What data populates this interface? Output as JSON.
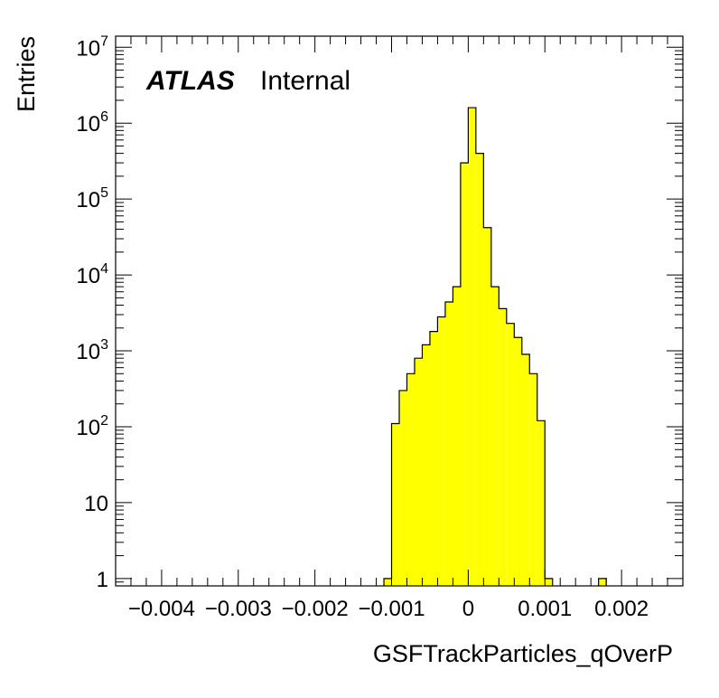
{
  "chart_data": {
    "type": "histogram",
    "title": "",
    "xlabel": "GSFTrackParticles_qOverP",
    "ylabel": "Entries",
    "label_atlas": "ATLAS",
    "label_status": "Internal",
    "xlim": [
      -0.0046,
      0.0028
    ],
    "ylim": [
      0.8,
      14000000
    ],
    "y_scale": "log",
    "grid": false,
    "fill_color": "#ffff00",
    "line_color": "#000000",
    "x_ticks": [
      {
        "value": -0.004,
        "label": "−0.004"
      },
      {
        "value": -0.003,
        "label": "−0.003"
      },
      {
        "value": -0.002,
        "label": "−0.002"
      },
      {
        "value": -0.001,
        "label": "−0.001"
      },
      {
        "value": 0,
        "label": "0"
      },
      {
        "value": 0.001,
        "label": "0.001"
      },
      {
        "value": 0.002,
        "label": "0.002"
      }
    ],
    "y_ticks": [
      {
        "value": 1,
        "base": "1",
        "exp": ""
      },
      {
        "value": 10,
        "base": "10",
        "exp": ""
      },
      {
        "value": 100,
        "base": "10",
        "exp": "2"
      },
      {
        "value": 1000,
        "base": "10",
        "exp": "3"
      },
      {
        "value": 10000,
        "base": "10",
        "exp": "4"
      },
      {
        "value": 100000,
        "base": "10",
        "exp": "5"
      },
      {
        "value": 1000000,
        "base": "10",
        "exp": "6"
      },
      {
        "value": 10000000,
        "base": "10",
        "exp": "7"
      }
    ],
    "bin_width": 0.0001,
    "bins": [
      {
        "x_low": -0.0011,
        "value": 1
      },
      {
        "x_low": -0.001,
        "value": 110
      },
      {
        "x_low": -0.0009,
        "value": 300
      },
      {
        "x_low": -0.0008,
        "value": 500
      },
      {
        "x_low": -0.0007,
        "value": 800
      },
      {
        "x_low": -0.0006,
        "value": 1200
      },
      {
        "x_low": -0.0005,
        "value": 1800
      },
      {
        "x_low": -0.0004,
        "value": 2800
      },
      {
        "x_low": -0.0003,
        "value": 4400
      },
      {
        "x_low": -0.0002,
        "value": 7000
      },
      {
        "x_low": -0.0001,
        "value": 300000
      },
      {
        "x_low": 0.0,
        "value": 1600000
      },
      {
        "x_low": 0.0001,
        "value": 400000
      },
      {
        "x_low": 0.0002,
        "value": 42000
      },
      {
        "x_low": 0.0003,
        "value": 7000
      },
      {
        "x_low": 0.0004,
        "value": 3600
      },
      {
        "x_low": 0.0005,
        "value": 2300
      },
      {
        "x_low": 0.0006,
        "value": 1500
      },
      {
        "x_low": 0.0007,
        "value": 900
      },
      {
        "x_low": 0.0008,
        "value": 500
      },
      {
        "x_low": 0.0009,
        "value": 120
      },
      {
        "x_low": 0.001,
        "value": 1
      },
      {
        "x_low": 0.0017,
        "value": 1
      }
    ]
  }
}
